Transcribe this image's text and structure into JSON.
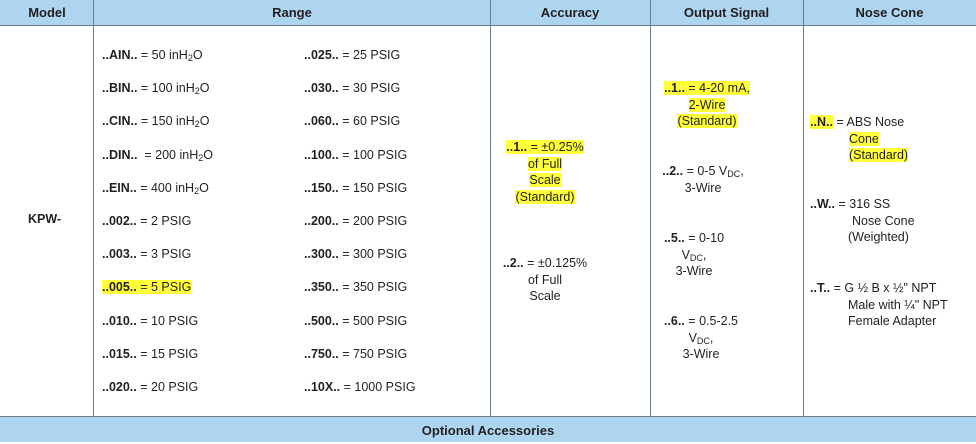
{
  "headers": {
    "model": "Model",
    "range": "Range",
    "accuracy": "Accuracy",
    "output": "Output Signal",
    "nose": "Nose Cone"
  },
  "model": "KPW-",
  "range_left": [
    {
      "code": "..AIN..",
      "eq": " = ",
      "value": "50 inH",
      "sub": "2",
      "tail": "O",
      "highlight": false
    },
    {
      "code": "..BIN..",
      "eq": " = ",
      "value": "100 inH",
      "sub": "2",
      "tail": "O",
      "highlight": false
    },
    {
      "code": "..CIN..",
      "eq": " = ",
      "value": "150 inH",
      "sub": "2",
      "tail": "O",
      "highlight": false
    },
    {
      "code": "..DIN..",
      "eq": "  = ",
      "value": "200 inH",
      "sub": "2",
      "tail": "O",
      "highlight": false
    },
    {
      "code": "..EIN..",
      "eq": " = ",
      "value": "400 inH",
      "sub": "2",
      "tail": "O",
      "highlight": false
    },
    {
      "code": "..002..",
      "eq": " = ",
      "value": "2 PSIG",
      "highlight": false
    },
    {
      "code": "..003..",
      "eq": " = ",
      "value": "3 PSIG",
      "highlight": false
    },
    {
      "code": "..005..",
      "eq": " = ",
      "value": "5 PSIG",
      "highlight": true
    },
    {
      "code": "..010..",
      "eq": " = ",
      "value": "10 PSIG",
      "highlight": false
    },
    {
      "code": "..015..",
      "eq": " = ",
      "value": "15 PSIG",
      "highlight": false
    },
    {
      "code": "..020..",
      "eq": " = ",
      "value": "20 PSIG",
      "highlight": false
    }
  ],
  "range_right": [
    {
      "code": "..025..",
      "eq": " = ",
      "value": "25 PSIG"
    },
    {
      "code": "..030..",
      "eq": " = ",
      "value": "30 PSIG"
    },
    {
      "code": "..060..",
      "eq": " = ",
      "value": "60 PSIG"
    },
    {
      "code": "..100..",
      "eq": " = ",
      "value": "100 PSIG"
    },
    {
      "code": "..150..",
      "eq": " = ",
      "value": "150 PSIG"
    },
    {
      "code": "..200..",
      "eq": " = ",
      "value": "200 PSIG"
    },
    {
      "code": "..300..",
      "eq": " = ",
      "value": "300 PSIG"
    },
    {
      "code": "..350..",
      "eq": " = ",
      "value": "350 PSIG"
    },
    {
      "code": "..500..",
      "eq": " = ",
      "value": "500 PSIG"
    },
    {
      "code": "..750..",
      "eq": " = ",
      "value": "750 PSIG"
    },
    {
      "code": "..10X..",
      "eq": " = ",
      "value": "1000 PSIG"
    }
  ],
  "accuracy": {
    "opt1": {
      "code": "..1..",
      "line1": " = ±0.25%",
      "line2": "of Full",
      "line3": "Scale",
      "line4": "(Standard)"
    },
    "opt2": {
      "code": "..2..",
      "line1": " = ±0.125%",
      "line2": "of Full",
      "line3": "Scale"
    }
  },
  "output": {
    "opt1": {
      "code": "..1..",
      "line1": " = 4-20 mA,",
      "line2": "2-Wire",
      "line3": "(Standard)"
    },
    "opt2": {
      "code": "..2..",
      "line1a": " = 0-5 V",
      "line1sub": "DC",
      "line1b": ",",
      "line2": "3-Wire"
    },
    "opt5": {
      "code": "..5..",
      "line1": " = 0-10",
      "line2a": "V",
      "line2sub": "DC",
      "line2b": ",",
      "line3": "3-Wire"
    },
    "opt6": {
      "code": "..6..",
      "line1": " = 0.5-2.5",
      "line2a": "V",
      "line2sub": "DC",
      "line2b": ",",
      "line3": "3-Wire"
    }
  },
  "nose": {
    "optN": {
      "code": "..N..",
      "line1": " =  ABS Nose",
      "line2": "Cone",
      "line3": "(Standard)"
    },
    "optW": {
      "code": "..W..",
      "line1": " =  316 SS",
      "line2": "Nose Cone",
      "line3": "(Weighted)"
    },
    "optT": {
      "code": "..T..",
      "line1": " =  G ½ B x ½\" NPT",
      "line2": "Male with ¼\" NPT",
      "line3": "Female Adapter"
    }
  },
  "footer": "Optional Accessories",
  "colors": {
    "header_bg": "#aed5f0",
    "highlight": "#ffff3a",
    "rule": "#6e7f8c"
  }
}
